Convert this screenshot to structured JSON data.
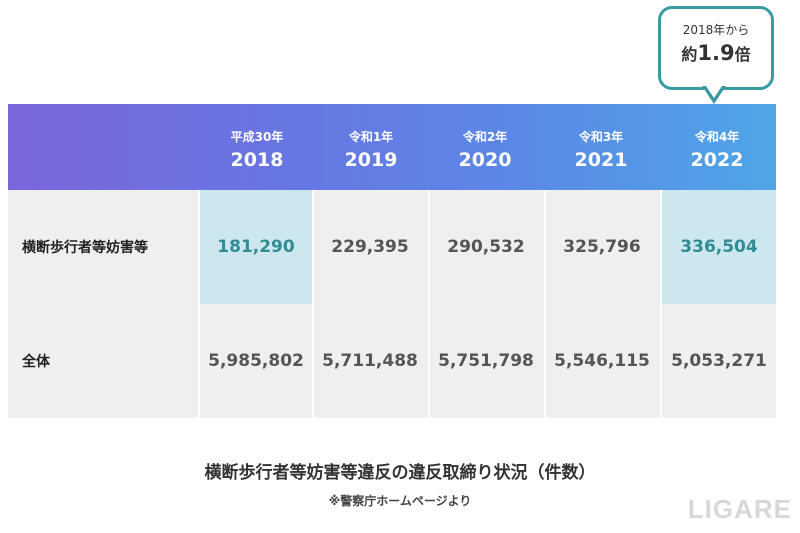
{
  "callout": {
    "line1": "2018年から",
    "line2_prefix": "約",
    "line2_value": "1.9",
    "line2_suffix": "倍"
  },
  "chart_data": {
    "type": "table",
    "columns": [
      {
        "era": "平成30年",
        "year": "2018"
      },
      {
        "era": "令和1年",
        "year": "2019"
      },
      {
        "era": "令和2年",
        "year": "2020"
      },
      {
        "era": "令和3年",
        "year": "2021"
      },
      {
        "era": "令和4年",
        "year": "2022"
      }
    ],
    "rows": [
      {
        "label": "横断歩行者等妨害等",
        "values": [
          "181,290",
          "229,395",
          "290,532",
          "325,796",
          "336,504"
        ]
      },
      {
        "label": "全体",
        "values": [
          "5,985,802",
          "5,711,488",
          "5,751,798",
          "5,546,115",
          "5,053,271"
        ]
      }
    ],
    "highlight_color": "#cde7ef",
    "highlight_text_color": "#2f8c94",
    "header_gradient": [
      "#7b67dc",
      "#4fa6e7"
    ]
  },
  "caption": {
    "title": "横断歩行者等妨害等違反の違反取締り状況（件数）",
    "note": "※警察庁ホームページより"
  },
  "logo": "LIGARE"
}
